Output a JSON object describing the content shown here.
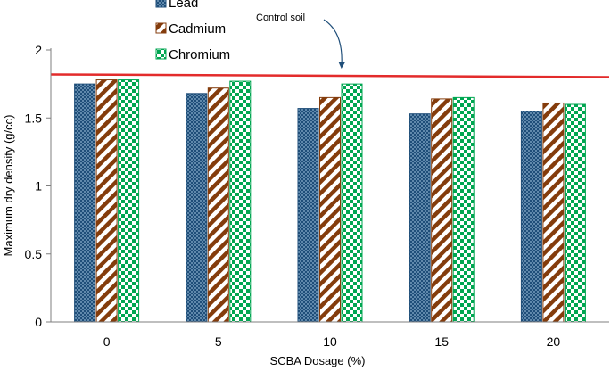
{
  "chart_data": {
    "type": "bar",
    "xlabel": "SCBA Dosage (%)",
    "ylabel": "Maximum dry density (g/cc)",
    "categories": [
      "0",
      "5",
      "10",
      "15",
      "20"
    ],
    "ylim": [
      0,
      2
    ],
    "yticks": [
      "0",
      "0.5",
      "1",
      "1.5",
      "2"
    ],
    "grid": false,
    "legend_position": "top-center",
    "series": [
      {
        "name": "Lead",
        "values": [
          1.75,
          1.68,
          1.57,
          1.53,
          1.55
        ],
        "color": "#1f4e79",
        "pattern": "dots"
      },
      {
        "name": "Cadmium",
        "values": [
          1.78,
          1.72,
          1.65,
          1.64,
          1.61
        ],
        "color": "#843c0c",
        "pattern": "diagonal-stripes"
      },
      {
        "name": "Chromium",
        "values": [
          1.78,
          1.77,
          1.75,
          1.65,
          1.6
        ],
        "color": "#00a651",
        "pattern": "checkerboard"
      }
    ],
    "reference_line": {
      "label": "Control soil",
      "value": 1.82,
      "color": "#e32b2b"
    }
  }
}
